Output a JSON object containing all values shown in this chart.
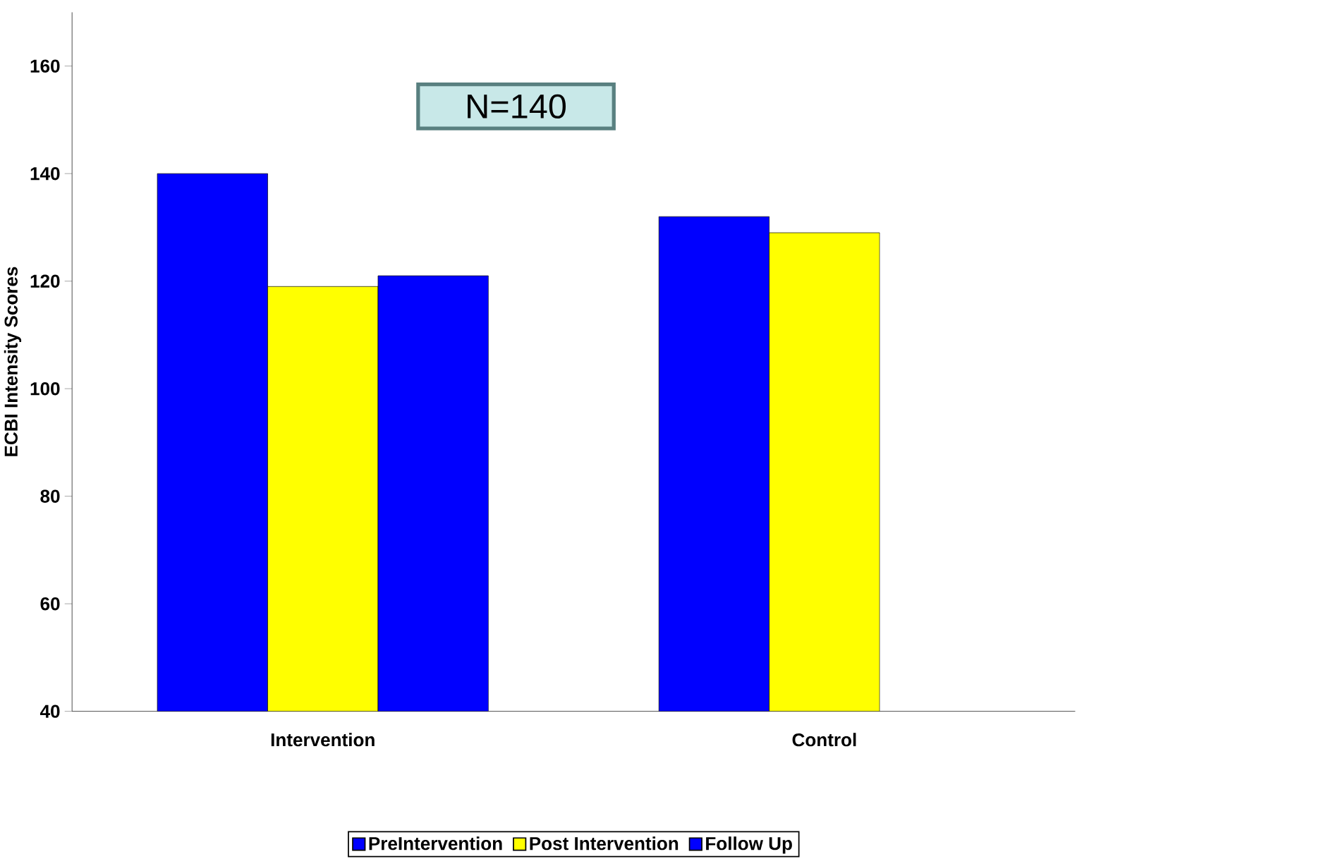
{
  "chart_data": {
    "type": "bar",
    "ylabel": "ECBI Intensity Scores",
    "categories": [
      "Intervention",
      "Control"
    ],
    "series": [
      {
        "name": "PreIntervention",
        "color": "#0000ff",
        "values": [
          140,
          132
        ]
      },
      {
        "name": "Post Intervention",
        "color": "#ffff00",
        "values": [
          119,
          129
        ]
      },
      {
        "name": "Follow Up",
        "color": "#0000ff",
        "values": [
          121,
          null
        ]
      }
    ],
    "ylim": [
      40,
      170
    ],
    "yticks": [
      40,
      60,
      80,
      100,
      120,
      140,
      160
    ],
    "annotations": [
      "N=140"
    ],
    "legend": "bottom",
    "grid": false
  }
}
